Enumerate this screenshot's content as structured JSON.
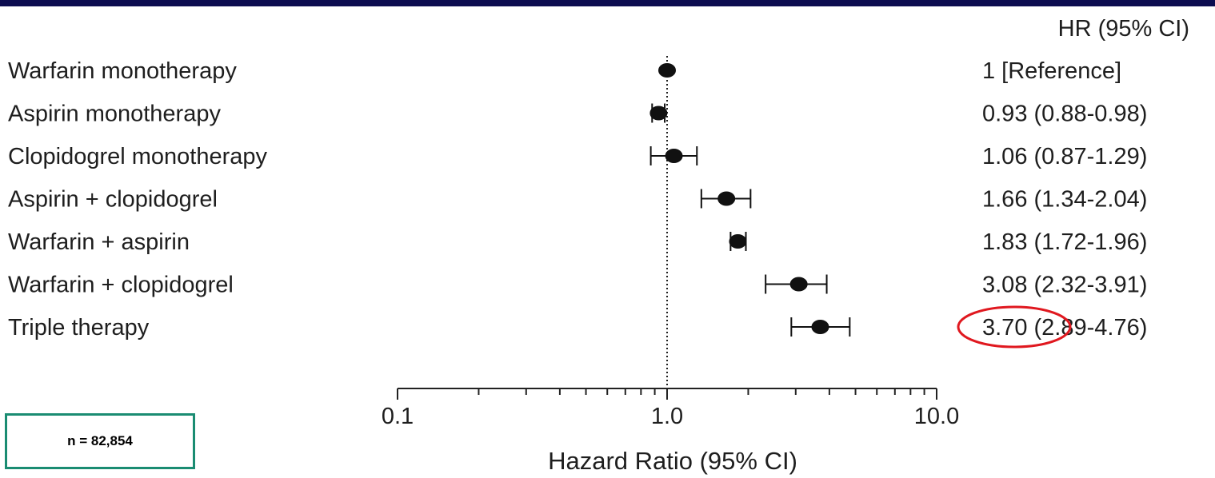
{
  "colors": {
    "top_bar": "#0c0c50",
    "marker": "#111111",
    "text": "#1e1e1e",
    "highlight_circle": "#e0181f",
    "n_box_border": "#1a8c72"
  },
  "chart_data": {
    "type": "forest",
    "x_scale": "log",
    "xlim": [
      0.1,
      10.0
    ],
    "reference_line": 1.0,
    "xticks_labeled": [
      "0.1",
      "1.0",
      "10.0"
    ],
    "xlabel": "Hazard Ratio (95% CI)",
    "hr_column_header": "HR (95% CI)",
    "rows": [
      {
        "label": "Warfarin monotherapy",
        "hr": 1.0,
        "lo": 1.0,
        "hi": 1.0,
        "text": "1 [Reference]"
      },
      {
        "label": "Aspirin monotherapy",
        "hr": 0.93,
        "lo": 0.88,
        "hi": 0.98,
        "text": "0.93 (0.88-0.98)"
      },
      {
        "label": "Clopidogrel monotherapy",
        "hr": 1.06,
        "lo": 0.87,
        "hi": 1.29,
        "text": "1.06 (0.87-1.29)"
      },
      {
        "label": "Aspirin + clopidogrel",
        "hr": 1.66,
        "lo": 1.34,
        "hi": 2.04,
        "text": "1.66 (1.34-2.04)"
      },
      {
        "label": "Warfarin + aspirin",
        "hr": 1.83,
        "lo": 1.72,
        "hi": 1.96,
        "text": "1.83 (1.72-1.96)"
      },
      {
        "label": "Warfarin + clopidogrel",
        "hr": 3.08,
        "lo": 2.32,
        "hi": 3.91,
        "text": "3.08 (2.32-3.91)"
      },
      {
        "label": "Triple therapy",
        "hr": 3.7,
        "lo": 2.89,
        "hi": 4.76,
        "text": "3.70 (2.89-4.76)",
        "highlighted": true
      }
    ]
  },
  "annotation": {
    "n_label": "n = 82,854"
  }
}
